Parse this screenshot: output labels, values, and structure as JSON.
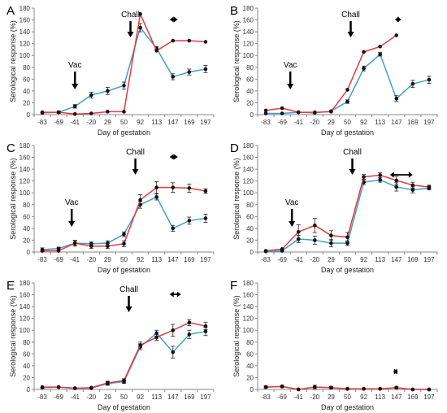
{
  "figure": {
    "panel_count": 6
  },
  "chart_data": [
    {
      "panel": "A",
      "type": "line",
      "categories": [
        "-83",
        "-69",
        "-41",
        "-20",
        "29",
        "50",
        "92",
        "113",
        "147",
        "169",
        "197"
      ],
      "xlabel": "Day of gestation",
      "ylabel": "Serological response (%)",
      "ylim": [
        0,
        180
      ],
      "yticks": [
        0,
        20,
        40,
        60,
        80,
        100,
        120,
        140,
        160,
        180
      ],
      "annotations": [
        {
          "type": "arrow",
          "label": "Vac",
          "category_index": 2.0
        },
        {
          "type": "arrow",
          "label": "Chall",
          "category_index": 5.4
        },
        {
          "type": "double-arrow",
          "label": "",
          "from_index": 7.8,
          "to_index": 8.3
        }
      ],
      "series": [
        {
          "color": "#3f9fd1",
          "values": [
            3,
            4,
            14,
            33,
            40,
            49,
            147,
            112,
            64,
            72,
            77
          ],
          "err": [
            0,
            2,
            3,
            5,
            6,
            6,
            7,
            3,
            5,
            5,
            6
          ]
        },
        {
          "color": "#e83a3a",
          "values": [
            4,
            4,
            1,
            2,
            5,
            5,
            170,
            108,
            125,
            125,
            123
          ],
          "err": [
            0,
            0,
            0,
            0,
            0,
            0,
            0,
            0,
            0,
            0,
            0
          ]
        }
      ]
    },
    {
      "panel": "B",
      "type": "line",
      "categories": [
        "-83",
        "-69",
        "-41",
        "-20",
        "29",
        "50",
        "92",
        "113",
        "147",
        "169",
        "197"
      ],
      "xlabel": "Day of gestation",
      "ylabel": "Serological response (%)",
      "ylim": [
        0,
        180
      ],
      "yticks": [
        0,
        20,
        40,
        60,
        80,
        100,
        120,
        140,
        160,
        180
      ],
      "annotations": [
        {
          "type": "arrow",
          "label": "Vac",
          "category_index": 1.5
        },
        {
          "type": "arrow",
          "label": "Chall",
          "category_index": 5.2
        },
        {
          "type": "double-arrow",
          "label": "",
          "from_index": 7.9,
          "to_index": 8.3
        }
      ],
      "series": [
        {
          "color": "#3f9fd1",
          "values": [
            2,
            2,
            4,
            3,
            6,
            22,
            78,
            102,
            27,
            52,
            59
          ],
          "err": [
            0,
            0,
            0,
            0,
            0,
            3,
            4,
            3,
            5,
            6,
            6
          ]
        },
        {
          "color": "#e83a3a",
          "values": [
            7,
            11,
            4,
            4,
            5,
            42,
            106,
            115,
            134,
            null,
            null
          ],
          "err": [
            0,
            0,
            0,
            0,
            0,
            0,
            0,
            0,
            0,
            0,
            0
          ]
        }
      ]
    },
    {
      "panel": "C",
      "type": "line",
      "categories": [
        "-83",
        "-69",
        "-41",
        "-20",
        "29",
        "50",
        "92",
        "113",
        "147",
        "169",
        "197"
      ],
      "xlabel": "Day of gestation",
      "ylabel": "Serological response (%)",
      "ylim": [
        0,
        180
      ],
      "yticks": [
        0,
        20,
        40,
        60,
        80,
        100,
        120,
        140,
        160,
        180
      ],
      "annotations": [
        {
          "type": "arrow",
          "label": "Vac",
          "category_index": 1.8
        },
        {
          "type": "arrow",
          "label": "Chall",
          "category_index": 5.7
        },
        {
          "type": "double-arrow",
          "label": "",
          "from_index": 7.8,
          "to_index": 8.3
        }
      ],
      "series": [
        {
          "color": "#3f9fd1",
          "values": [
            4,
            6,
            15,
            14,
            15,
            30,
            80,
            93,
            40,
            53,
            57
          ],
          "err": [
            3,
            2,
            4,
            3,
            4,
            4,
            6,
            5,
            5,
            6,
            7
          ]
        },
        {
          "color": "#e83a3a",
          "values": [
            2,
            2,
            15,
            10,
            10,
            14,
            88,
            109,
            109,
            108,
            103
          ],
          "err": [
            0,
            0,
            5,
            4,
            4,
            5,
            9,
            10,
            8,
            7,
            4
          ]
        }
      ]
    },
    {
      "panel": "D",
      "type": "line",
      "categories": [
        "-83",
        "-69",
        "-41",
        "-20",
        "29",
        "50",
        "92",
        "113",
        "147",
        "169",
        "197"
      ],
      "xlabel": "Day of gestation",
      "ylabel": "Serological response (%)",
      "ylim": [
        0,
        180
      ],
      "yticks": [
        0,
        20,
        40,
        60,
        80,
        100,
        120,
        140,
        160,
        180
      ],
      "annotations": [
        {
          "type": "arrow",
          "label": "Vac",
          "category_index": 1.6
        },
        {
          "type": "arrow",
          "label": "Chall",
          "category_index": 5.3
        },
        {
          "type": "double-arrow",
          "label": "",
          "from_index": 7.6,
          "to_index": 9.0
        }
      ],
      "series": [
        {
          "color": "#3f9fd1",
          "values": [
            1,
            2,
            22,
            20,
            15,
            15,
            118,
            122,
            110,
            105,
            108
          ],
          "err": [
            0,
            0,
            6,
            7,
            6,
            4,
            4,
            4,
            7,
            5,
            3
          ]
        },
        {
          "color": "#e83a3a",
          "values": [
            2,
            5,
            34,
            45,
            28,
            25,
            127,
            130,
            121,
            113,
            110
          ],
          "err": [
            0,
            0,
            12,
            12,
            8,
            8,
            4,
            4,
            7,
            5,
            3
          ]
        }
      ]
    },
    {
      "panel": "E",
      "type": "line",
      "categories": [
        "-83",
        "-69",
        "-41",
        "-20",
        "29",
        "50",
        "92",
        "113",
        "147",
        "169",
        "197"
      ],
      "xlabel": "Day of gestation",
      "ylabel": "Serological response (%)",
      "ylim": [
        0,
        180
      ],
      "yticks": [
        0,
        20,
        40,
        60,
        80,
        100,
        120,
        140,
        160,
        180
      ],
      "annotations": [
        {
          "type": "arrow",
          "label": "Chall",
          "category_index": 5.3
        },
        {
          "type": "double-arrow",
          "label": "",
          "from_index": 7.8,
          "to_index": 8.5
        }
      ],
      "series": [
        {
          "color": "#3f9fd1",
          "values": [
            3,
            4,
            2,
            2,
            10,
            13,
            72,
            95,
            63,
            93,
            98
          ],
          "err": [
            0,
            0,
            0,
            0,
            3,
            3,
            5,
            5,
            10,
            7,
            7
          ]
        },
        {
          "color": "#e83a3a",
          "values": [
            4,
            4,
            2,
            3,
            11,
            15,
            75,
            88,
            100,
            113,
            107
          ],
          "err": [
            0,
            0,
            0,
            0,
            3,
            3,
            5,
            5,
            10,
            5,
            6
          ]
        }
      ]
    },
    {
      "panel": "F",
      "type": "line",
      "categories": [
        "-83",
        "-69",
        "-41",
        "-20",
        "29",
        "50",
        "92",
        "113",
        "147",
        "169",
        "197"
      ],
      "xlabel": "Day of gestation",
      "ylabel": "Serological response (%)",
      "ylim": [
        0,
        180
      ],
      "yticks": [
        0,
        20,
        40,
        60,
        80,
        100,
        120,
        140,
        160,
        180
      ],
      "annotations": [
        {
          "type": "double-arrow",
          "label": "",
          "from_index": 7.8,
          "to_index": 8.1
        }
      ],
      "series": [
        {
          "color": "#3f9fd1",
          "values": [
            4,
            5,
            0,
            4,
            3,
            1,
            1,
            1,
            3,
            0,
            0
          ],
          "err": [
            2,
            2,
            0,
            3,
            2,
            0,
            0,
            0,
            2,
            0,
            0
          ]
        },
        {
          "color": "#e83a3a",
          "values": [
            4,
            5,
            0,
            4,
            3,
            1,
            1,
            1,
            3,
            0,
            0
          ],
          "err": [
            0,
            0,
            0,
            0,
            0,
            0,
            0,
            0,
            0,
            0,
            0
          ]
        }
      ]
    }
  ]
}
